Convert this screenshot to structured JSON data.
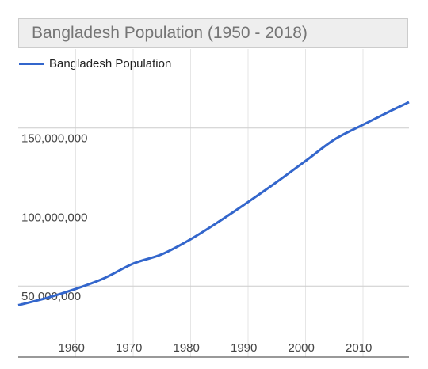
{
  "chart_data": {
    "type": "line",
    "title": "Bangladesh Population (1950 - 2018)",
    "xlabel": "",
    "ylabel": "",
    "x_ticks": [
      "1960",
      "1970",
      "1980",
      "1990",
      "2000",
      "2010"
    ],
    "y_ticks": [
      "50,000,000",
      "100,000,000",
      "150,000,000"
    ],
    "y_tick_values": [
      50000000,
      100000000,
      150000000
    ],
    "xlim": [
      1950,
      2018
    ],
    "ylim": [
      5000000,
      200000000
    ],
    "grid": true,
    "legend": "top-left",
    "colors": {
      "line": "#3366cc",
      "grid": "#cccccc",
      "baseline": "#333333"
    },
    "series": [
      {
        "name": "Bangladesh Population",
        "x": [
          1950,
          1955,
          1960,
          1965,
          1970,
          1975,
          1980,
          1985,
          1990,
          1995,
          2000,
          2005,
          2010,
          2015,
          2018
        ],
        "values": [
          37900000,
          42500000,
          48200000,
          55000000,
          64200000,
          70100000,
          79600000,
          91000000,
          103200000,
          115900000,
          129200000,
          142700000,
          152100000,
          161200000,
          166400000
        ]
      }
    ]
  }
}
